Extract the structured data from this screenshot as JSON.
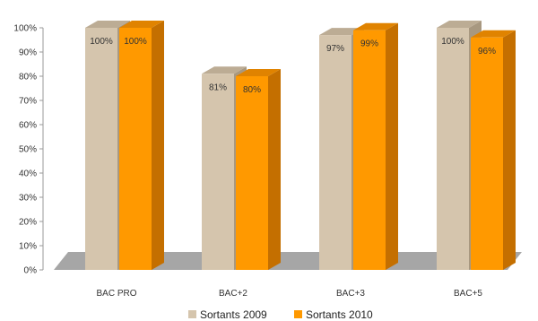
{
  "chart_data": {
    "type": "bar",
    "categories": [
      "BAC PRO",
      "BAC+2",
      "BAC+3",
      "BAC+5"
    ],
    "series": [
      {
        "name": "Sortants 2009",
        "values": [
          100,
          81,
          97,
          100
        ],
        "labels": [
          "100%",
          "81%",
          "97%",
          "100%"
        ],
        "color": "#D5C5AD",
        "side_color": "#A89880",
        "top_color": "#BCAC94"
      },
      {
        "name": "Sortants 2010",
        "values": [
          100,
          80,
          99,
          96
        ],
        "labels": [
          "100%",
          "80%",
          "99%",
          "96%"
        ],
        "color": "#FF9900",
        "side_color": "#C46F00",
        "top_color": "#E08300"
      }
    ],
    "yticks": [
      "0%",
      "10%",
      "20%",
      "30%",
      "40%",
      "50%",
      "60%",
      "70%",
      "80%",
      "90%",
      "100%"
    ],
    "ylim": [
      0,
      100
    ],
    "title": "",
    "xlabel": "",
    "ylabel": "",
    "legend": "bottom",
    "grid": false,
    "floor_color": "#A6A6A6"
  }
}
